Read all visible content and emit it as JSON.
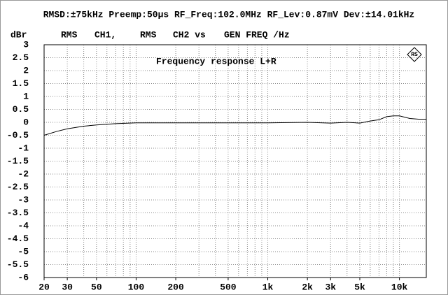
{
  "chart_data": {
    "type": "line",
    "title": "RMSD:±75kHz Preemp:50μs RF_Freq:102.0MHz RF_Lev:0.87mV Dev:±14.01kHz",
    "y_label": "dBr",
    "header": [
      "RMS",
      "CH1,",
      "RMS",
      "CH2 vs",
      "GEN FREQ /Hz"
    ],
    "annotation": "Frequency response L+R",
    "log_x": true,
    "xlim": [
      20,
      16000
    ],
    "ylim": [
      -6,
      3
    ],
    "xticks": [
      20,
      30,
      50,
      100,
      200,
      500,
      {
        "value": 1000,
        "label": "1k"
      },
      {
        "value": 2000,
        "label": "2k"
      },
      {
        "value": 3000,
        "label": "3k"
      },
      {
        "value": 5000,
        "label": "5k"
      },
      {
        "value": 10000,
        "label": "10k"
      }
    ],
    "yticks": [
      3,
      2.5,
      2,
      1.5,
      1,
      0.5,
      0,
      -0.5,
      -1,
      -1.5,
      -2,
      -2.5,
      -3,
      -3.5,
      -4,
      -4.5,
      -5,
      -5.5,
      -6
    ],
    "xgrid": [
      30,
      40,
      50,
      60,
      70,
      80,
      90,
      100,
      200,
      300,
      400,
      500,
      600,
      700,
      800,
      900,
      1000,
      2000,
      3000,
      4000,
      5000,
      6000,
      7000,
      8000,
      9000,
      10000
    ],
    "grid": true,
    "x": [
      20,
      25,
      30,
      40,
      50,
      70,
      100,
      200,
      500,
      1000,
      2000,
      3000,
      4000,
      5000,
      6000,
      7000,
      8000,
      9000,
      10000,
      12000,
      14000,
      16000
    ],
    "series": [
      {
        "color": "#000000",
        "values": [
          -0.5,
          -0.35,
          -0.25,
          -0.15,
          -0.1,
          -0.05,
          -0.02,
          -0.02,
          -0.02,
          -0.02,
          0.0,
          -0.03,
          0.0,
          -0.03,
          0.05,
          0.1,
          0.22,
          0.25,
          0.25,
          0.15,
          0.12,
          0.12
        ]
      }
    ]
  }
}
